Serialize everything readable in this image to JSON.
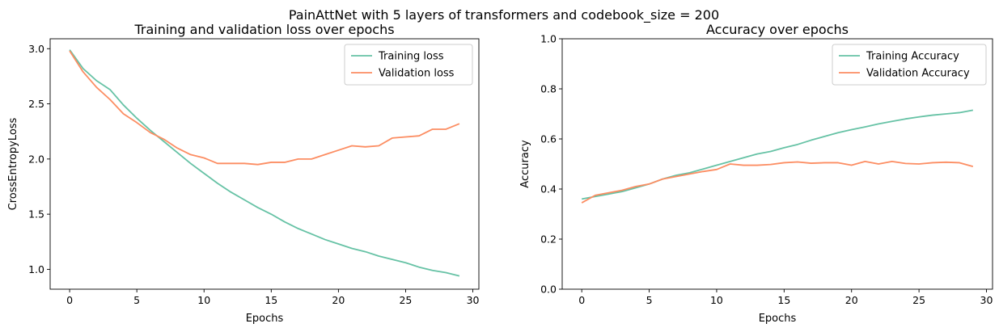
{
  "figure": {
    "suptitle": "PainAttNet with 5 layers of transformers and codebook_size = 200"
  },
  "colors": {
    "training": "#66c2a5",
    "validation": "#fc8d62"
  },
  "chart_data": [
    {
      "type": "line",
      "title": "Training and validation loss over epochs",
      "xlabel": "Epochs",
      "ylabel": "CrossEntropyLoss",
      "xlim": [
        -1.45,
        30.45
      ],
      "ylim": [
        0.82,
        3.09
      ],
      "xticks": [
        0,
        5,
        10,
        15,
        20,
        25,
        30
      ],
      "yticks": [
        1.0,
        1.5,
        2.0,
        2.5,
        3.0
      ],
      "ytick_labels": [
        "1.0",
        "1.5",
        "2.0",
        "2.5",
        "3.0"
      ],
      "grid": false,
      "legend_position": "top-right",
      "x": [
        0,
        1,
        2,
        3,
        4,
        5,
        6,
        7,
        8,
        9,
        10,
        11,
        12,
        13,
        14,
        15,
        16,
        17,
        18,
        19,
        20,
        21,
        22,
        23,
        24,
        25,
        26,
        27,
        28,
        29
      ],
      "series": [
        {
          "name": "Training loss",
          "color": "#66c2a5",
          "values": [
            2.99,
            2.82,
            2.71,
            2.63,
            2.49,
            2.37,
            2.26,
            2.16,
            2.06,
            1.96,
            1.87,
            1.78,
            1.7,
            1.63,
            1.56,
            1.5,
            1.43,
            1.37,
            1.32,
            1.27,
            1.23,
            1.19,
            1.16,
            1.12,
            1.09,
            1.06,
            1.02,
            0.99,
            0.97,
            0.94
          ]
        },
        {
          "name": "Validation loss",
          "color": "#fc8d62",
          "values": [
            2.98,
            2.79,
            2.65,
            2.54,
            2.41,
            2.33,
            2.24,
            2.18,
            2.1,
            2.04,
            2.01,
            1.96,
            1.96,
            1.96,
            1.95,
            1.97,
            1.97,
            2.0,
            2.0,
            2.04,
            2.08,
            2.12,
            2.11,
            2.12,
            2.19,
            2.2,
            2.21,
            2.27,
            2.27,
            2.32
          ]
        }
      ]
    },
    {
      "type": "line",
      "title": "Accuracy over epochs",
      "xlabel": "Epochs",
      "ylabel": "Accuracy",
      "xlim": [
        -1.45,
        30.45
      ],
      "ylim": [
        0.0,
        1.0
      ],
      "xticks": [
        0,
        5,
        10,
        15,
        20,
        25,
        30
      ],
      "yticks": [
        0.0,
        0.2,
        0.4,
        0.6,
        0.8,
        1.0
      ],
      "ytick_labels": [
        "0.0",
        "0.2",
        "0.4",
        "0.6",
        "0.8",
        "1.0"
      ],
      "grid": false,
      "legend_position": "top-right",
      "x": [
        0,
        1,
        2,
        3,
        4,
        5,
        6,
        7,
        8,
        9,
        10,
        11,
        12,
        13,
        14,
        15,
        16,
        17,
        18,
        19,
        20,
        21,
        22,
        23,
        24,
        25,
        26,
        27,
        28,
        29
      ],
      "series": [
        {
          "name": "Training Accuracy",
          "color": "#66c2a5",
          "values": [
            0.36,
            0.37,
            0.38,
            0.39,
            0.405,
            0.42,
            0.44,
            0.455,
            0.465,
            0.48,
            0.495,
            0.51,
            0.525,
            0.54,
            0.55,
            0.565,
            0.578,
            0.595,
            0.61,
            0.625,
            0.637,
            0.648,
            0.66,
            0.67,
            0.68,
            0.688,
            0.695,
            0.7,
            0.705,
            0.715
          ]
        },
        {
          "name": "Validation Accuracy",
          "color": "#fc8d62",
          "values": [
            0.345,
            0.375,
            0.385,
            0.395,
            0.41,
            0.42,
            0.44,
            0.45,
            0.46,
            0.47,
            0.478,
            0.5,
            0.495,
            0.495,
            0.498,
            0.505,
            0.508,
            0.503,
            0.505,
            0.505,
            0.495,
            0.51,
            0.5,
            0.51,
            0.502,
            0.5,
            0.505,
            0.507,
            0.505,
            0.49
          ]
        }
      ]
    }
  ]
}
